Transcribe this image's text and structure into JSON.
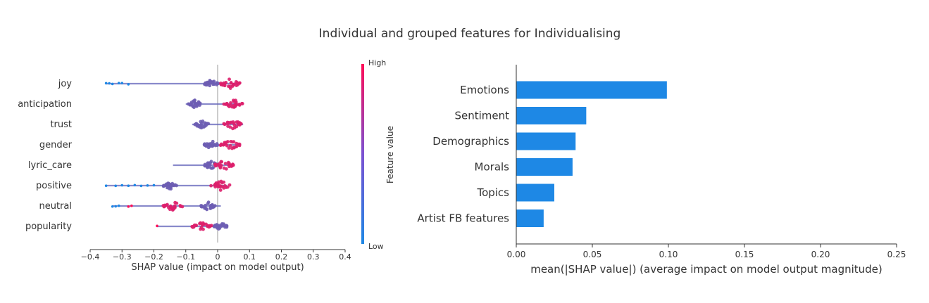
{
  "figure": {
    "title": "Individual and grouped features for Individualising"
  },
  "chart_data": [
    {
      "type": "scatter",
      "subtype": "beeswarm",
      "xlabel": "SHAP value (impact on model output)",
      "xlim": [
        -0.4,
        0.4
      ],
      "x_ticks": [
        "−0.4",
        "−0.3",
        "−0.2",
        "−0.1",
        "0",
        "0.1",
        "0.2",
        "0.3",
        "0.4"
      ],
      "x_tick_values": [
        -0.4,
        -0.3,
        -0.2,
        -0.1,
        0,
        0.1,
        0.2,
        0.3,
        0.4
      ],
      "colorbar": {
        "label": "Feature value",
        "high": "High",
        "low": "Low",
        "low_color": "#1e88e5",
        "high_color": "#ff0d57"
      },
      "features": [
        {
          "name": "joy",
          "min": -0.35,
          "max": 0.07,
          "low_center": -0.02,
          "high_center": 0.04,
          "outliers_low": [
            -0.35,
            -0.34,
            -0.33,
            -0.31,
            -0.3,
            -0.28
          ],
          "outliers_high": []
        },
        {
          "name": "anticipation",
          "min": -0.1,
          "max": 0.07,
          "low_center": -0.07,
          "high_center": 0.05,
          "outliers_low": [],
          "outliers_high": []
        },
        {
          "name": "trust",
          "min": -0.08,
          "max": 0.08,
          "low_center": -0.05,
          "high_center": 0.05,
          "outliers_low": [],
          "outliers_high": []
        },
        {
          "name": "gender",
          "min": -0.04,
          "max": 0.07,
          "low_center": -0.02,
          "high_center": 0.04,
          "outliers_low": [],
          "outliers_high": []
        },
        {
          "name": "lyric_care",
          "min": -0.14,
          "max": 0.04,
          "low_center": -0.02,
          "high_center": 0.02,
          "outliers_low": [],
          "outliers_high": []
        },
        {
          "name": "positive",
          "min": -0.35,
          "max": 0.03,
          "low_center": -0.15,
          "high_center": 0.01,
          "outliers_low": [
            -0.35,
            -0.32,
            -0.3,
            -0.28,
            -0.26,
            -0.24,
            -0.22,
            -0.2
          ],
          "outliers_high": []
        },
        {
          "name": "neutral",
          "min": -0.33,
          "max": 0.01,
          "low_center": -0.03,
          "high_center": -0.14,
          "outliers_low": [
            -0.33,
            -0.32,
            -0.31
          ],
          "outliers_high": [
            -0.28,
            -0.27
          ]
        },
        {
          "name": "popularity",
          "min": -0.19,
          "max": 0.03,
          "low_center": 0.01,
          "high_center": -0.05,
          "outliers_low": [],
          "outliers_high": [
            -0.19
          ]
        }
      ]
    },
    {
      "type": "bar",
      "orientation": "horizontal",
      "categories": [
        "Emotions",
        "Sentiment",
        "Demographics",
        "Morals",
        "Topics",
        "Artist FB features"
      ],
      "values": [
        0.099,
        0.046,
        0.039,
        0.037,
        0.025,
        0.018
      ],
      "xlabel": "mean(|SHAP value|) (average impact on model output magnitude)",
      "xlim": [
        0,
        0.25
      ],
      "x_ticks": [
        "0.00",
        "0.05",
        "0.10",
        "0.15",
        "0.20",
        "0.25"
      ],
      "x_tick_values": [
        0,
        0.05,
        0.1,
        0.15,
        0.2,
        0.25
      ],
      "bar_color": "#1e88e5"
    }
  ]
}
